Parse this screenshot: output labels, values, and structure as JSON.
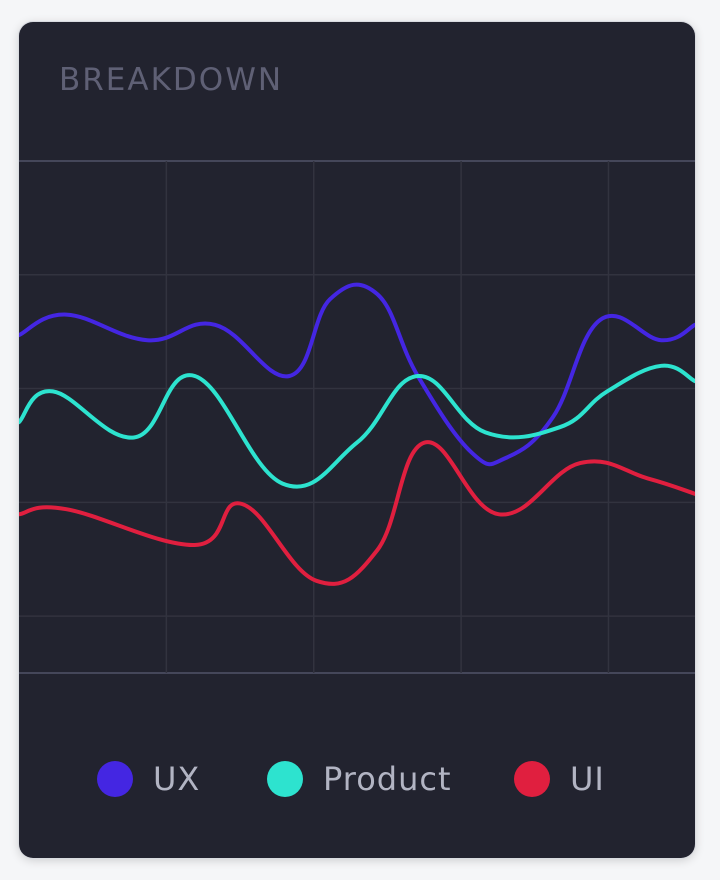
{
  "card": {
    "title": "BREAKDOWN"
  },
  "chart_data": {
    "type": "line",
    "title": "",
    "xlabel": "",
    "ylabel": "",
    "grid": true,
    "legend_position": "bottom",
    "xlim": [
      0,
      100
    ],
    "ylim": [
      0,
      100
    ],
    "series": [
      {
        "name": "UX",
        "color": "#4426e2",
        "x": [
          0,
          7,
          19,
          29,
          40,
          46,
          53,
          59,
          67,
          72,
          79,
          86,
          95,
          100
        ],
        "y": [
          66,
          70,
          65,
          68,
          58,
          73,
          74,
          58,
          43,
          42,
          50,
          69,
          65,
          68
        ]
      },
      {
        "name": "Product",
        "color": "#2de3cf",
        "x": [
          0,
          5,
          17,
          26,
          39,
          50,
          59,
          69,
          80,
          87,
          95,
          100
        ],
        "y": [
          49,
          55,
          46,
          58,
          37,
          45,
          58,
          47,
          48,
          55,
          60,
          57
        ]
      },
      {
        "name": "UI",
        "color": "#e01f3f",
        "x": [
          0,
          7,
          26,
          33,
          44,
          53,
          60,
          71,
          83,
          93,
          100
        ],
        "y": [
          31,
          32,
          25,
          33,
          18,
          24,
          45,
          31,
          41,
          38,
          35
        ]
      }
    ]
  },
  "legend": [
    {
      "label": "UX",
      "color": "#4426e2"
    },
    {
      "label": "Product",
      "color": "#2de3cf"
    },
    {
      "label": "UI",
      "color": "#e01f3f"
    }
  ]
}
